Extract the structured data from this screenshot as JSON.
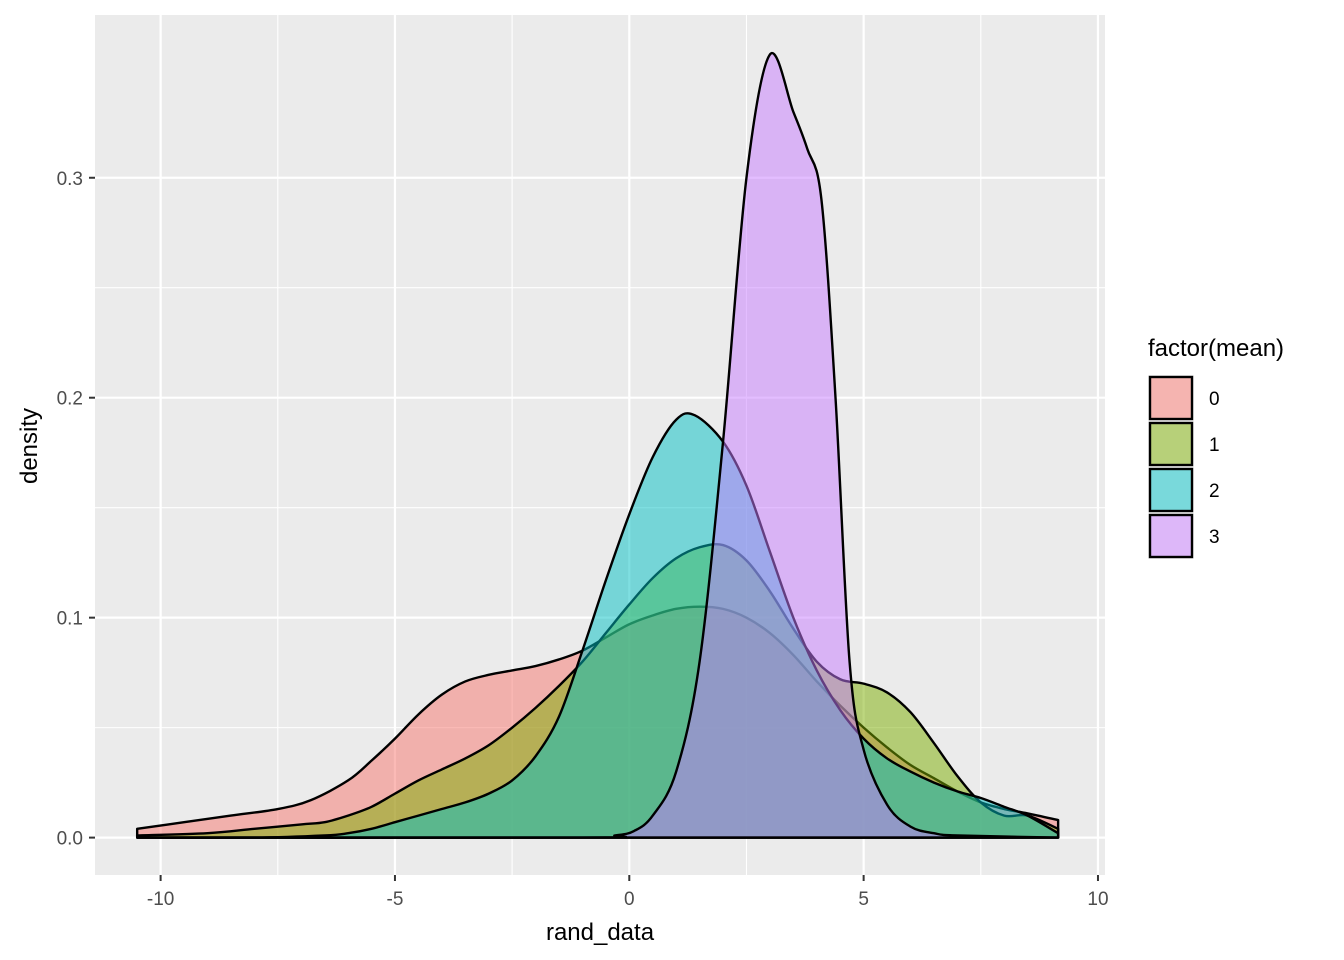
{
  "chart_data": {
    "type": "area",
    "subtype": "density",
    "xlabel": "rand_data",
    "ylabel": "density",
    "xlim": [
      -11.4,
      10.15
    ],
    "ylim": [
      -0.017,
      0.374
    ],
    "x_ticks": [
      -10,
      -5,
      0,
      5,
      10
    ],
    "x_tick_labels": [
      "-10",
      "-5",
      "0",
      "5",
      "10"
    ],
    "y_ticks": [
      0.0,
      0.1,
      0.2,
      0.3
    ],
    "y_tick_labels": [
      "0.0",
      "0.1",
      "0.2",
      "0.3"
    ],
    "grid": true,
    "legend": {
      "title": "factor(mean)",
      "placement": "right"
    },
    "colors": {
      "panel_bg": "#ebebeb",
      "grid": "#ffffff",
      "outline": "#000000"
    },
    "fill_opacity": 0.5,
    "series": [
      {
        "name": "0",
        "color": "#F8766D",
        "points": [
          [
            -10.5,
            0.004
          ],
          [
            -9.5,
            0.007
          ],
          [
            -8.5,
            0.01
          ],
          [
            -7.5,
            0.013
          ],
          [
            -6.8,
            0.017
          ],
          [
            -6.0,
            0.026
          ],
          [
            -5.5,
            0.035
          ],
          [
            -5.0,
            0.045
          ],
          [
            -4.5,
            0.056
          ],
          [
            -4.0,
            0.065
          ],
          [
            -3.5,
            0.071
          ],
          [
            -3.0,
            0.074
          ],
          [
            -2.5,
            0.076
          ],
          [
            -2.0,
            0.078
          ],
          [
            -1.5,
            0.081
          ],
          [
            -1.0,
            0.085
          ],
          [
            -0.5,
            0.091
          ],
          [
            0.0,
            0.097
          ],
          [
            0.5,
            0.101
          ],
          [
            1.0,
            0.104
          ],
          [
            1.5,
            0.105
          ],
          [
            2.0,
            0.104
          ],
          [
            2.5,
            0.1
          ],
          [
            3.0,
            0.093
          ],
          [
            3.5,
            0.083
          ],
          [
            4.0,
            0.071
          ],
          [
            4.5,
            0.06
          ],
          [
            5.0,
            0.05
          ],
          [
            5.5,
            0.041
          ],
          [
            6.0,
            0.033
          ],
          [
            6.5,
            0.027
          ],
          [
            7.0,
            0.021
          ],
          [
            7.5,
            0.016
          ],
          [
            8.0,
            0.013
          ],
          [
            8.5,
            0.011
          ],
          [
            9.15,
            0.008
          ]
        ]
      },
      {
        "name": "1",
        "color": "#7CAE00",
        "points": [
          [
            -10.5,
            0.001
          ],
          [
            -9.0,
            0.002
          ],
          [
            -8.0,
            0.004
          ],
          [
            -7.0,
            0.006
          ],
          [
            -6.5,
            0.007
          ],
          [
            -6.0,
            0.01
          ],
          [
            -5.5,
            0.014
          ],
          [
            -5.0,
            0.02
          ],
          [
            -4.5,
            0.026
          ],
          [
            -4.0,
            0.031
          ],
          [
            -3.5,
            0.036
          ],
          [
            -3.0,
            0.042
          ],
          [
            -2.5,
            0.05
          ],
          [
            -2.0,
            0.059
          ],
          [
            -1.5,
            0.069
          ],
          [
            -1.0,
            0.08
          ],
          [
            -0.5,
            0.093
          ],
          [
            0.0,
            0.106
          ],
          [
            0.5,
            0.118
          ],
          [
            1.0,
            0.127
          ],
          [
            1.5,
            0.132
          ],
          [
            2.0,
            0.133
          ],
          [
            2.5,
            0.126
          ],
          [
            3.0,
            0.112
          ],
          [
            3.5,
            0.095
          ],
          [
            4.0,
            0.08
          ],
          [
            4.5,
            0.072
          ],
          [
            5.0,
            0.07
          ],
          [
            5.5,
            0.066
          ],
          [
            6.0,
            0.057
          ],
          [
            6.5,
            0.043
          ],
          [
            7.0,
            0.028
          ],
          [
            7.5,
            0.016
          ],
          [
            8.0,
            0.01
          ],
          [
            8.5,
            0.01
          ],
          [
            9.15,
            0.004
          ]
        ]
      },
      {
        "name": "2",
        "color": "#00BFC4",
        "points": [
          [
            -10.5,
            0.0
          ],
          [
            -8.0,
            0.0
          ],
          [
            -6.5,
            0.001
          ],
          [
            -6.0,
            0.002
          ],
          [
            -5.5,
            0.004
          ],
          [
            -5.0,
            0.007
          ],
          [
            -4.5,
            0.01
          ],
          [
            -4.0,
            0.013
          ],
          [
            -3.5,
            0.016
          ],
          [
            -3.0,
            0.02
          ],
          [
            -2.5,
            0.026
          ],
          [
            -2.0,
            0.037
          ],
          [
            -1.5,
            0.055
          ],
          [
            -1.0,
            0.085
          ],
          [
            -0.5,
            0.117
          ],
          [
            0.0,
            0.147
          ],
          [
            0.5,
            0.173
          ],
          [
            1.0,
            0.19
          ],
          [
            1.4,
            0.192
          ],
          [
            2.0,
            0.18
          ],
          [
            2.5,
            0.16
          ],
          [
            3.0,
            0.13
          ],
          [
            3.5,
            0.1
          ],
          [
            4.0,
            0.076
          ],
          [
            4.5,
            0.058
          ],
          [
            5.0,
            0.045
          ],
          [
            5.5,
            0.036
          ],
          [
            6.0,
            0.03
          ],
          [
            6.5,
            0.025
          ],
          [
            7.0,
            0.021
          ],
          [
            7.5,
            0.018
          ],
          [
            8.0,
            0.014
          ],
          [
            8.5,
            0.01
          ],
          [
            9.15,
            0.002
          ]
        ]
      },
      {
        "name": "3",
        "color": "#C77CFF",
        "points": [
          [
            -10.5,
            0.0
          ],
          [
            -1.0,
            0.0
          ],
          [
            -0.3,
            0.001
          ],
          [
            0.1,
            0.003
          ],
          [
            0.5,
            0.01
          ],
          [
            1.0,
            0.03
          ],
          [
            1.5,
            0.08
          ],
          [
            2.0,
            0.18
          ],
          [
            2.5,
            0.3
          ],
          [
            3.0,
            0.356
          ],
          [
            3.5,
            0.33
          ],
          [
            3.8,
            0.313
          ],
          [
            4.1,
            0.29
          ],
          [
            4.4,
            0.2
          ],
          [
            4.7,
            0.08
          ],
          [
            5.0,
            0.04
          ],
          [
            5.5,
            0.015
          ],
          [
            6.0,
            0.005
          ],
          [
            6.5,
            0.002
          ],
          [
            7.0,
            0.001
          ],
          [
            9.15,
            0.0
          ]
        ]
      }
    ]
  }
}
